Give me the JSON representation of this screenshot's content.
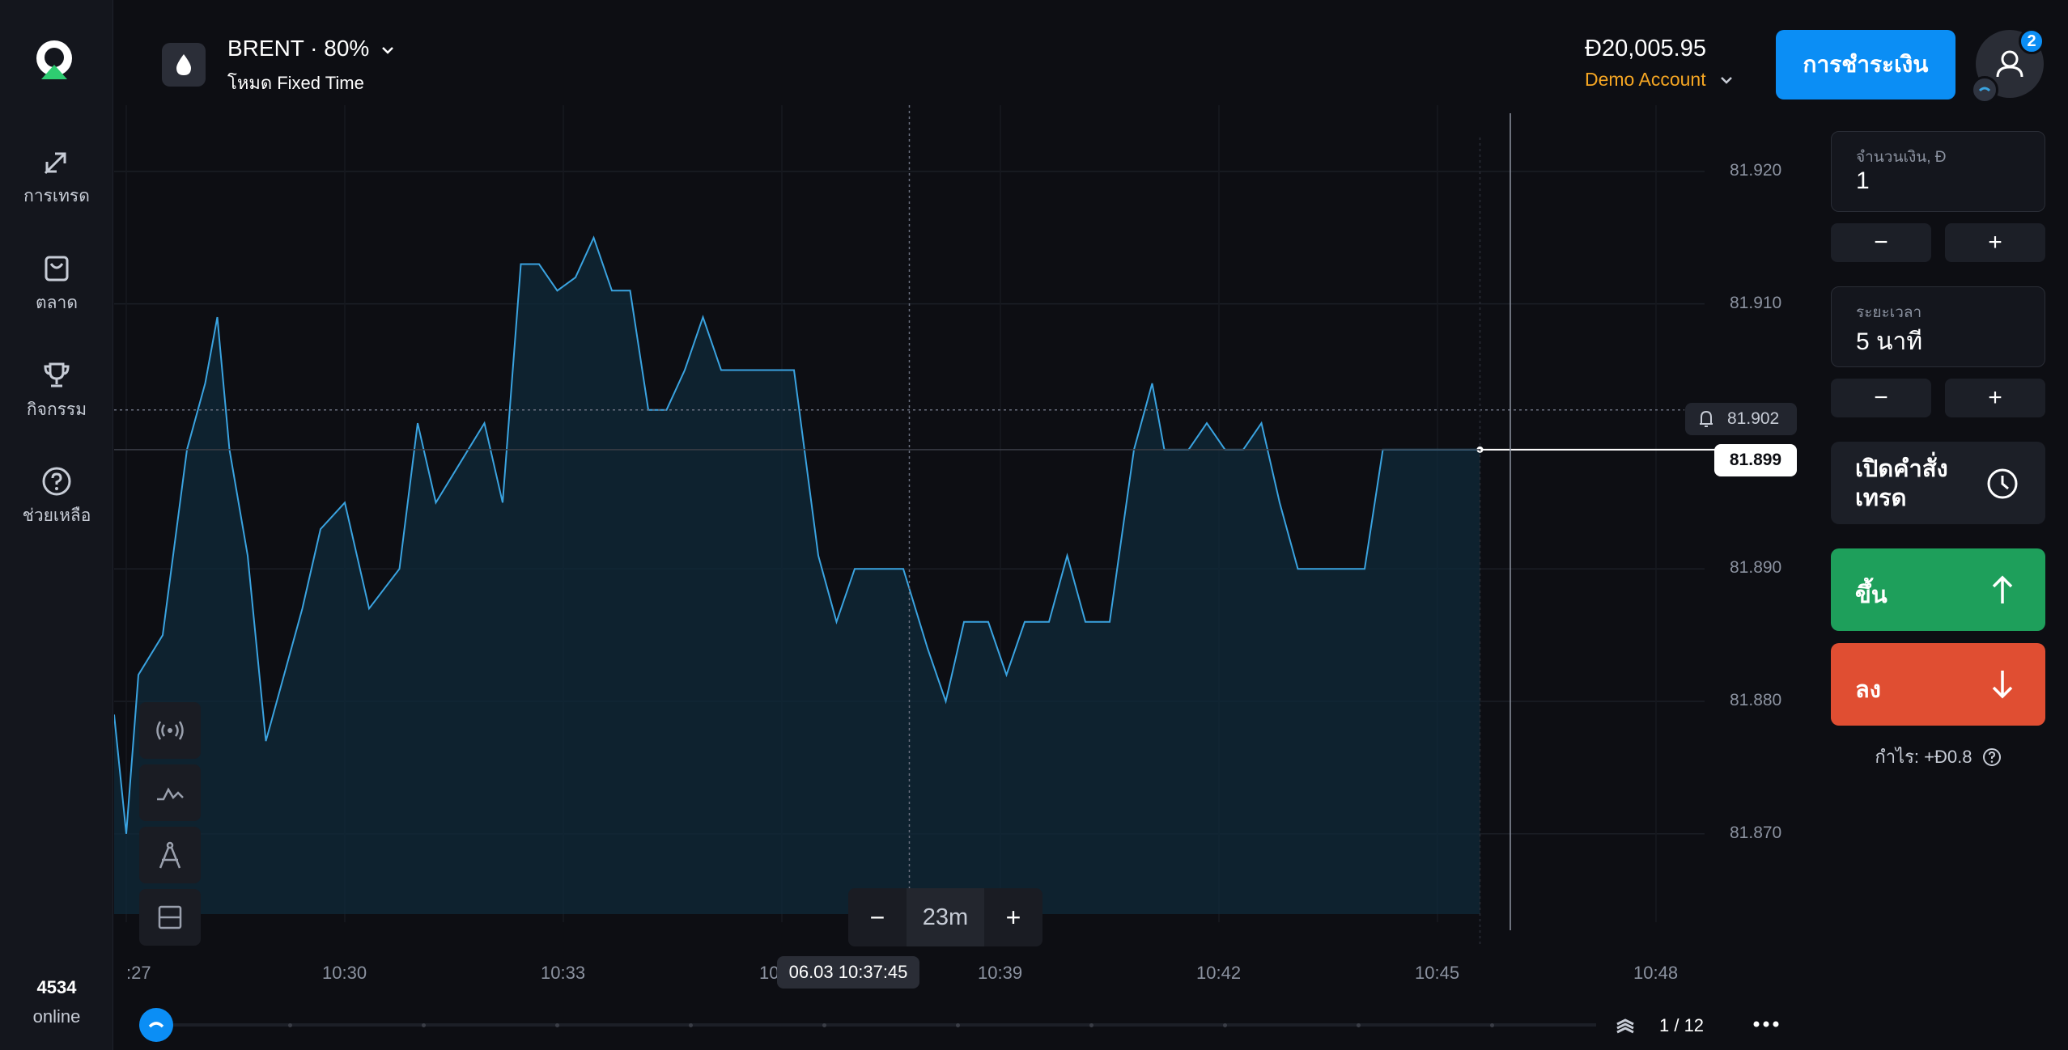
{
  "sidebar": {
    "items": [
      {
        "label": "การเทรด",
        "icon": "trade-arrows-icon"
      },
      {
        "label": "ตลาด",
        "icon": "shopping-bag-icon"
      },
      {
        "label": "กิจกรรม",
        "icon": "trophy-icon"
      },
      {
        "label": "ช่วยเหลือ",
        "icon": "help-circle-icon"
      }
    ],
    "online_count": "4534",
    "online_label": "online"
  },
  "header": {
    "asset_name": "BRENT · 80%",
    "asset_mode": "โหมด Fixed Time",
    "balance": "Đ20,005.95",
    "account": "Demo Account",
    "pay_button": "การชำระเงิน",
    "notifications": "2"
  },
  "chart": {
    "price_labels": [
      "81.920",
      "81.910",
      "81.902",
      "81.899",
      "81.890",
      "81.880",
      "81.870"
    ],
    "time_labels": [
      ":27",
      "10:30",
      "10:33",
      "10:36",
      "10:39",
      "10:42",
      "10:45",
      "10:48"
    ],
    "crosshair_time": "06.03 10:37:45",
    "current_price": "81.899",
    "alert_price": "81.902",
    "zoom_value": "23m",
    "zoom_minus": "−",
    "zoom_plus": "+",
    "page": "1 / 12",
    "colors": {
      "line": "#3aa3e0",
      "fill": "#0f2a3a"
    }
  },
  "chart_data": {
    "type": "line",
    "title": "",
    "xlabel": "",
    "ylabel": "",
    "ylim": [
      81.8615,
      81.925
    ],
    "x_range": [
      "10:26:50",
      "10:49:30"
    ],
    "series": [
      {
        "values": [
          [
            "10:26:50",
            81.879
          ],
          [
            "10:27:00",
            81.87
          ],
          [
            "10:27:10",
            81.882
          ],
          [
            "10:27:30",
            81.885
          ],
          [
            "10:27:50",
            81.899
          ],
          [
            "10:28:05",
            81.904
          ],
          [
            "10:28:15",
            81.909
          ],
          [
            "10:28:25",
            81.899
          ],
          [
            "10:28:40",
            81.891
          ],
          [
            "10:28:55",
            81.877
          ],
          [
            "10:29:10",
            81.882
          ],
          [
            "10:29:25",
            81.887
          ],
          [
            "10:29:40",
            81.893
          ],
          [
            "10:30:00",
            81.895
          ],
          [
            "10:30:20",
            81.887
          ],
          [
            "10:30:45",
            81.89
          ],
          [
            "10:31:00",
            81.901
          ],
          [
            "10:31:15",
            81.895
          ],
          [
            "10:31:35",
            81.898
          ],
          [
            "10:31:55",
            81.901
          ],
          [
            "10:32:10",
            81.895
          ],
          [
            "10:32:25",
            81.913
          ],
          [
            "10:32:40",
            81.913
          ],
          [
            "10:32:55",
            81.911
          ],
          [
            "10:33:10",
            81.912
          ],
          [
            "10:33:25",
            81.915
          ],
          [
            "10:33:40",
            81.911
          ],
          [
            "10:33:55",
            81.911
          ],
          [
            "10:34:10",
            81.902
          ],
          [
            "10:34:25",
            81.902
          ],
          [
            "10:34:40",
            81.905
          ],
          [
            "10:34:55",
            81.909
          ],
          [
            "10:35:10",
            81.905
          ],
          [
            "10:35:30",
            81.905
          ],
          [
            "10:35:50",
            81.905
          ],
          [
            "10:36:10",
            81.905
          ],
          [
            "10:36:30",
            81.891
          ],
          [
            "10:36:45",
            81.886
          ],
          [
            "10:37:00",
            81.89
          ],
          [
            "10:37:20",
            81.89
          ],
          [
            "10:37:40",
            81.89
          ],
          [
            "10:38:00",
            81.884
          ],
          [
            "10:38:15",
            81.88
          ],
          [
            "10:38:30",
            81.886
          ],
          [
            "10:38:50",
            81.886
          ],
          [
            "10:39:05",
            81.882
          ],
          [
            "10:39:20",
            81.886
          ],
          [
            "10:39:40",
            81.886
          ],
          [
            "10:39:55",
            81.891
          ],
          [
            "10:40:10",
            81.886
          ],
          [
            "10:40:30",
            81.886
          ],
          [
            "10:40:50",
            81.899
          ],
          [
            "10:41:05",
            81.904
          ],
          [
            "10:41:15",
            81.899
          ],
          [
            "10:41:35",
            81.899
          ],
          [
            "10:41:50",
            81.901
          ],
          [
            "10:42:05",
            81.899
          ],
          [
            "10:42:20",
            81.899
          ],
          [
            "10:42:35",
            81.901
          ],
          [
            "10:42:50",
            81.895
          ],
          [
            "10:43:05",
            81.89
          ],
          [
            "10:43:30",
            81.89
          ],
          [
            "10:44:00",
            81.89
          ],
          [
            "10:44:15",
            81.899
          ],
          [
            "10:44:40",
            81.899
          ],
          [
            "10:45:10",
            81.899
          ],
          [
            "10:45:35",
            81.899
          ]
        ]
      }
    ]
  },
  "panel": {
    "amount_label": "จำนวนเงิน, Đ",
    "amount_value": "1",
    "duration_label": "ระยะเวลา",
    "duration_value": "5 นาที",
    "minus": "−",
    "plus": "+",
    "open_order": "เปิดคำสั่งเทรด",
    "up": "ขึ้น",
    "down": "ลง",
    "profit": "กำไร: +Đ0.8",
    "colors": {
      "up": "#1e9f5b",
      "down": "#e04e32",
      "accent": "#0b8ef5"
    }
  }
}
